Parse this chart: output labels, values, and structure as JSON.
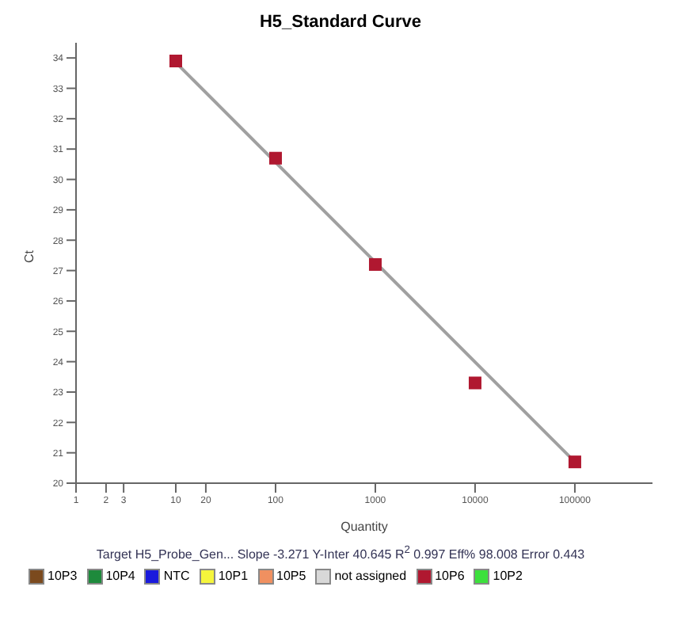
{
  "chart_data": {
    "type": "scatter",
    "title": "H5_Standard Curve",
    "xlabel": "Quantity",
    "ylabel": "Ct",
    "log": "x",
    "marker": "square",
    "legend": "bottom",
    "xlim": [
      1,
      600000
    ],
    "xticks": [
      1,
      2,
      3,
      10,
      20,
      100,
      1000,
      10000,
      100000
    ],
    "ylim": [
      20,
      34.5
    ],
    "yticks": [
      20,
      21,
      22,
      23,
      24,
      25,
      26,
      27,
      28,
      29,
      30,
      31,
      32,
      33,
      34
    ],
    "series": [
      {
        "name": "10P3",
        "color": "#7b4a1e"
      },
      {
        "name": "10P4",
        "color": "#1e8a3c"
      },
      {
        "name": "NTC",
        "color": "#1a1adc"
      },
      {
        "name": "10P1",
        "color": "#f5f53c"
      },
      {
        "name": "10P5",
        "color": "#f09060"
      },
      {
        "name": "not assigned",
        "color": "#d8d8d8"
      },
      {
        "name": "10P6",
        "color": "#b01830",
        "x": [
          10,
          100,
          1000,
          10000,
          100000
        ],
        "values": [
          33.9,
          30.7,
          27.2,
          23.3,
          20.7
        ]
      },
      {
        "name": "10P2",
        "color": "#3ce03c"
      },
      {
        "type": "line",
        "color": "#a0a0a0",
        "marker": "none",
        "x": [
          10,
          100000
        ],
        "values": [
          33.85,
          20.7
        ]
      }
    ],
    "annotations": [
      "Target  H5_Probe_Gen...  Slope  -3.271  Y-Inter  40.645  R$^{2}$  0.997  Eff%  98.008  Error  0.443"
    ]
  }
}
